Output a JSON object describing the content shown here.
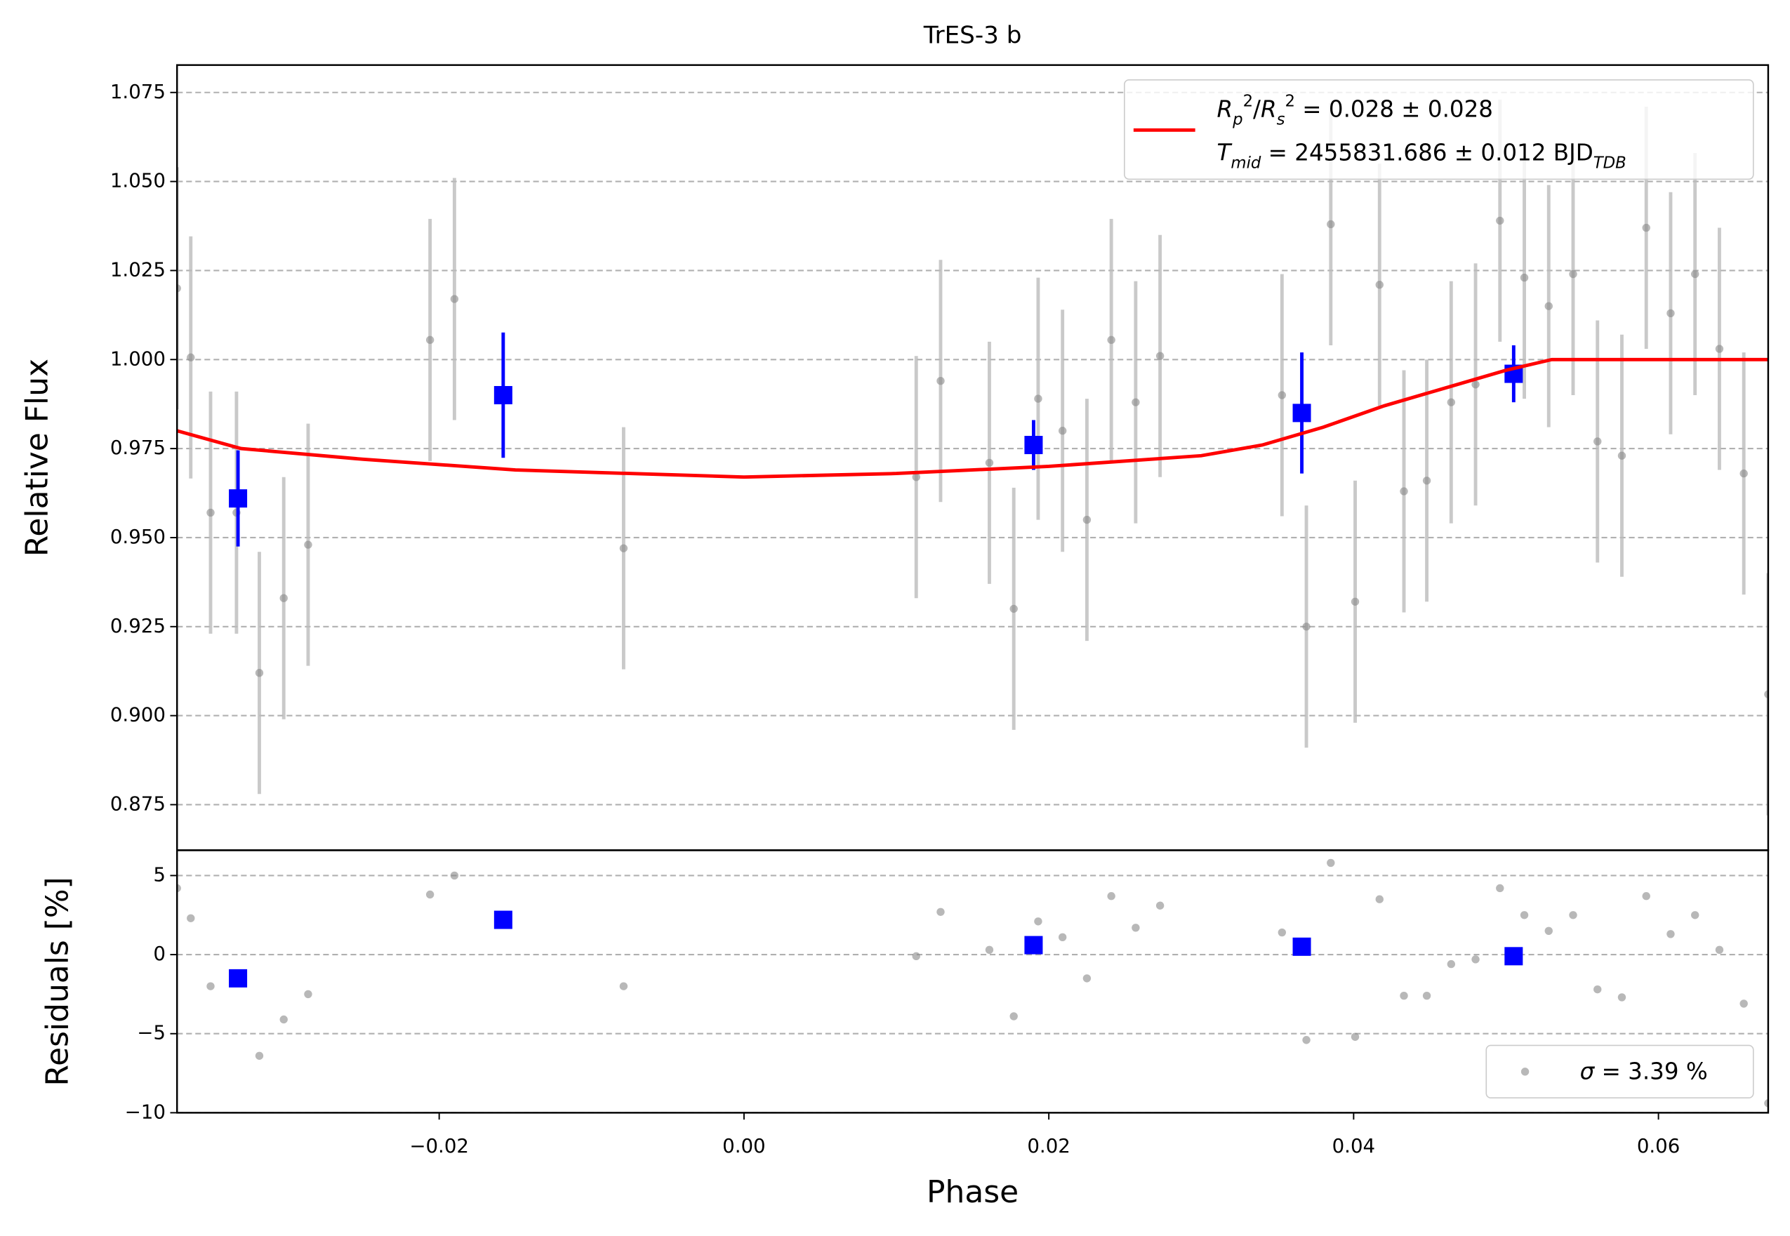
{
  "chart_data": [
    {
      "type": "scatter",
      "title": "TrES-3 b",
      "y_label": "Relative Flux",
      "xlim": [
        -0.0372,
        0.0672
      ],
      "ylim": [
        0.8622,
        1.0827
      ],
      "yticks": [
        0.875,
        {
          "value": 0.9,
          "label": "0.900"
        },
        0.925,
        {
          "value": 0.95,
          "label": "0.950"
        },
        0.975,
        {
          "value": 1.0,
          "label": "1.000"
        },
        1.025,
        {
          "value": 1.05,
          "label": "1.050"
        },
        1.075
      ],
      "grid": true,
      "series": [
        {
          "color": "#888888",
          "x": [
            -0.0372,
            -0.0363,
            -0.035,
            -0.0333,
            -0.0318,
            -0.0302,
            -0.0286,
            -0.0206,
            -0.019,
            -0.0079,
            0.0113,
            0.0129,
            0.0161,
            0.0177,
            0.0193,
            0.0209,
            0.0225,
            0.0241,
            0.0257,
            0.0273,
            0.0353,
            0.0369,
            0.0385,
            0.0401,
            0.0417,
            0.0433,
            0.0448,
            0.0464,
            0.048,
            0.0496,
            0.0512,
            0.0528,
            0.0544,
            0.056,
            0.0576,
            0.0592,
            0.0608,
            0.0624,
            0.064,
            0.0656,
            0.0672
          ],
          "values": [
            1.02,
            1.0006,
            0.957,
            0.957,
            0.912,
            0.933,
            0.948,
            1.0055,
            1.017,
            0.947,
            0.967,
            0.994,
            0.971,
            0.93,
            0.989,
            0.98,
            0.955,
            1.0055,
            0.988,
            1.001,
            0.99,
            0.925,
            1.038,
            0.932,
            1.021,
            0.963,
            0.966,
            0.988,
            0.993,
            1.039,
            1.023,
            1.015,
            1.024,
            0.977,
            0.973,
            1.037,
            1.013,
            1.024,
            1.003,
            0.968,
            0.906
          ],
          "errors": [
            0.034,
            0.034,
            0.034,
            0.034,
            0.034,
            0.034,
            0.034,
            0.034,
            0.034,
            0.034,
            0.034,
            0.034,
            0.034,
            0.034,
            0.034,
            0.034,
            0.034,
            0.034,
            0.034,
            0.034,
            0.034,
            0.034,
            0.034,
            0.034,
            0.034,
            0.034,
            0.034,
            0.034,
            0.034,
            0.034,
            0.034,
            0.034,
            0.034,
            0.034,
            0.034,
            0.034,
            0.034,
            0.034,
            0.034,
            0.034,
            0.034
          ]
        },
        {
          "color": "#0000ff",
          "x": [
            -0.0332,
            -0.0158,
            0.019,
            0.0366,
            0.0505
          ],
          "values": [
            0.961,
            0.99,
            0.976,
            0.985,
            0.996
          ],
          "errors": [
            0.0135,
            0.0176,
            0.007,
            0.017,
            0.008
          ]
        }
      ],
      "model": {
        "color": "#ff0000",
        "x": [
          -0.0372,
          -0.033,
          -0.025,
          -0.015,
          0.0,
          0.01,
          0.02,
          0.03,
          0.034,
          0.038,
          0.042,
          0.046,
          0.05,
          0.053,
          0.0672
        ],
        "values": [
          0.98,
          0.975,
          0.972,
          0.969,
          0.967,
          0.968,
          0.97,
          0.973,
          0.976,
          0.981,
          0.987,
          0.992,
          0.997,
          1.0,
          1.0
        ],
        "label": [
          [
            {
              "t": "R",
              "s": "i"
            },
            {
              "t": "p",
              "s": "sub"
            },
            {
              "t": "2",
              "s": "sup"
            },
            {
              "t": "/",
              "s": ""
            },
            {
              "t": "R",
              "s": "i"
            },
            {
              "t": "s",
              "s": "sub"
            },
            {
              "t": "2",
              "s": "sup"
            },
            {
              "t": " = 0.028 ± 0.028",
              "s": ""
            }
          ],
          [
            {
              "t": "T",
              "s": "i"
            },
            {
              "t": "mid",
              "s": "sub"
            },
            {
              "t": " = 2455831.686 ± 0.012 BJD",
              "s": ""
            },
            {
              "t": "TDB",
              "s": "sub"
            }
          ]
        ]
      }
    },
    {
      "type": "scatter",
      "x_label": "Phase",
      "y_label": "Residuals [%]",
      "xlim": [
        -0.0372,
        0.0672
      ],
      "ylim": [
        -10,
        6.6
      ],
      "xticks": [
        {
          "value": -0.02,
          "label": "−0.02"
        },
        {
          "value": 0.0,
          "label": "0.00"
        },
        {
          "value": 0.02,
          "label": "0.02"
        },
        {
          "value": 0.04,
          "label": "0.04"
        },
        {
          "value": 0.06,
          "label": "0.06"
        }
      ],
      "yticks": [
        5,
        0,
        {
          "value": -5,
          "label": "−5"
        },
        {
          "value": -10,
          "label": "−10"
        }
      ],
      "grid": true,
      "series": [
        {
          "color": "#888888",
          "x": [
            -0.0372,
            -0.0363,
            -0.035,
            -0.0333,
            -0.0318,
            -0.0302,
            -0.0286,
            -0.0206,
            -0.019,
            -0.0079,
            0.0113,
            0.0129,
            0.0161,
            0.0177,
            0.0193,
            0.0209,
            0.0225,
            0.0241,
            0.0257,
            0.0273,
            0.0353,
            0.0369,
            0.0385,
            0.0401,
            0.0417,
            0.0433,
            0.0448,
            0.0464,
            0.048,
            0.0496,
            0.0512,
            0.0528,
            0.0544,
            0.056,
            0.0576,
            0.0592,
            0.0608,
            0.0624,
            0.064,
            0.0656,
            0.0672
          ],
          "values": [
            4.2,
            2.3,
            -2.0,
            -1.6,
            -6.4,
            -4.1,
            -2.5,
            3.8,
            5.0,
            -2.0,
            -0.1,
            2.7,
            0.3,
            -3.9,
            2.1,
            1.1,
            -1.5,
            3.7,
            1.7,
            3.1,
            1.4,
            -5.4,
            5.8,
            -5.2,
            3.5,
            -2.6,
            -2.6,
            -0.6,
            -0.3,
            4.2,
            2.5,
            1.5,
            2.5,
            -2.2,
            -2.7,
            3.7,
            1.3,
            2.5,
            0.3,
            -3.1,
            -9.4
          ],
          "label": [
            {
              "t": "σ",
              "s": "i"
            },
            {
              "t": " = 3.39 %",
              "s": ""
            }
          ]
        },
        {
          "color": "#0000ff",
          "x": [
            -0.0332,
            -0.0158,
            0.019,
            0.0366,
            0.0505
          ],
          "values": [
            -1.5,
            2.2,
            0.6,
            0.5,
            -0.1
          ]
        }
      ]
    }
  ]
}
